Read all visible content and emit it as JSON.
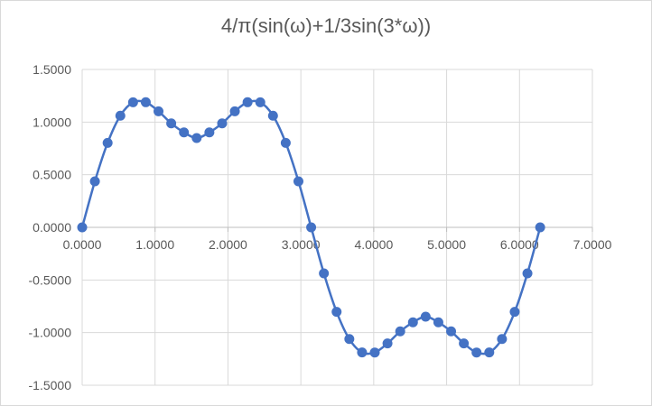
{
  "chart_data": {
    "type": "line",
    "title": "4/π(sin(ω)+1/3sin(3*ω))",
    "xlabel": "",
    "ylabel": "",
    "xlim": [
      0,
      7
    ],
    "ylim": [
      -1.5,
      1.5
    ],
    "x_ticks": [
      "0.0000",
      "1.0000",
      "2.0000",
      "3.0000",
      "4.0000",
      "5.0000",
      "6.0000",
      "7.0000"
    ],
    "y_ticks": [
      "1.5000",
      "1.0000",
      "0.5000",
      "0.0000",
      "-0.5000",
      "-1.0000",
      "-1.5000"
    ],
    "grid": true,
    "legend": "none",
    "series": [
      {
        "color": "#4472c4",
        "markers": true,
        "x": [
          0.0,
          0.1745,
          0.3491,
          0.5236,
          0.6981,
          0.8727,
          1.0472,
          1.2217,
          1.3963,
          1.5708,
          1.7453,
          1.9199,
          2.0944,
          2.2689,
          2.4435,
          2.618,
          2.7925,
          2.9671,
          3.1416,
          3.3161,
          3.4907,
          3.6652,
          3.8397,
          4.0143,
          4.1888,
          4.3633,
          4.5379,
          4.7124,
          4.8869,
          5.0615,
          5.236,
          5.4105,
          5.5851,
          5.7596,
          5.9341,
          6.1087,
          6.2832
        ],
        "values": [
          0.0,
          0.4372,
          0.8027,
          1.061,
          1.1879,
          1.1888,
          1.1027,
          0.9881,
          0.9023,
          0.8488,
          0.9023,
          0.9881,
          1.1027,
          1.1888,
          1.1879,
          1.061,
          0.8027,
          0.4372,
          0.0,
          -0.4372,
          -0.8027,
          -1.061,
          -1.1879,
          -1.1888,
          -1.1027,
          -0.9881,
          -0.9023,
          -0.8488,
          -0.9023,
          -0.9881,
          -1.1027,
          -1.1888,
          -1.1879,
          -1.061,
          -0.8027,
          -0.4372,
          0.0
        ]
      }
    ]
  }
}
